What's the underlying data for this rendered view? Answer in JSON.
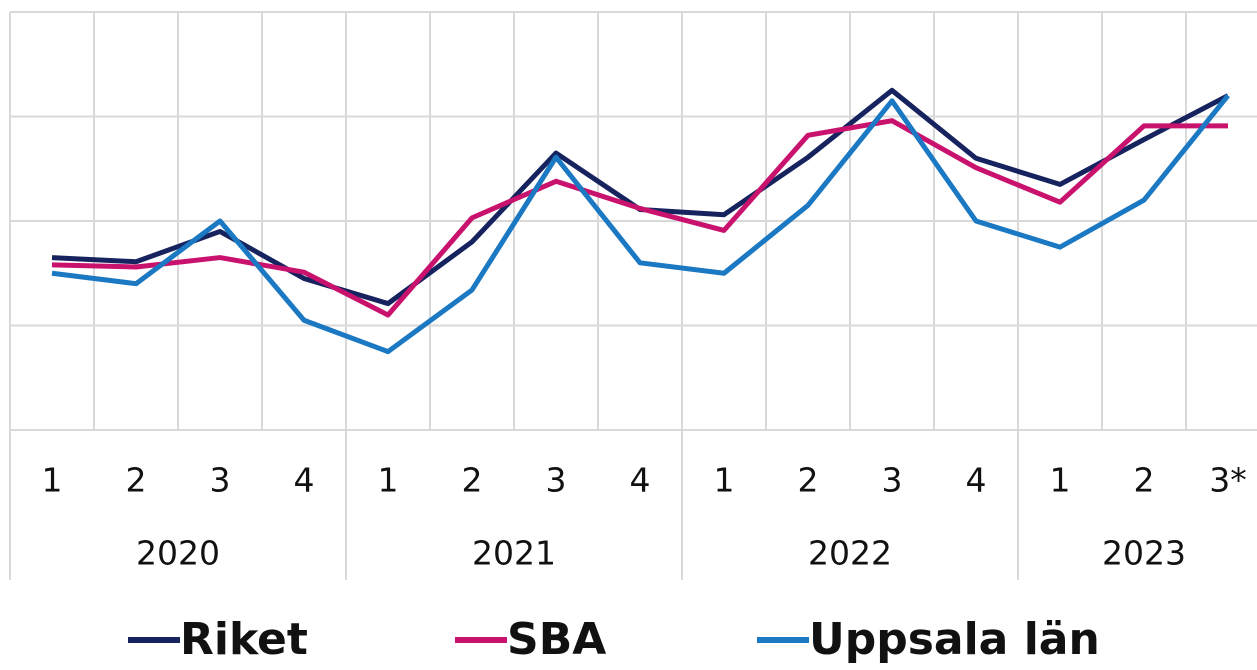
{
  "chart_data": {
    "type": "line",
    "categories": [
      "1",
      "2",
      "3",
      "4",
      "1",
      "2",
      "3",
      "4",
      "1",
      "2",
      "3",
      "4",
      "1",
      "2",
      "3*"
    ],
    "groups": [
      "2020",
      "2021",
      "2022",
      "2023"
    ],
    "series": [
      {
        "name": "Riket",
        "color": "#16235e",
        "values": [
          1.65,
          1.61,
          1.9,
          1.45,
          1.21,
          1.8,
          2.65,
          2.11,
          2.06,
          2.61,
          3.25,
          2.6,
          2.35,
          2.78,
          3.2
        ]
      },
      {
        "name": "SBA",
        "color": "#c8126e",
        "values": [
          1.58,
          1.56,
          1.65,
          1.51,
          1.1,
          2.03,
          2.38,
          2.12,
          1.91,
          2.82,
          2.96,
          2.51,
          2.18,
          2.91,
          2.91
        ]
      },
      {
        "name": "Uppsala län",
        "color": "#1b78c2",
        "values": [
          1.5,
          1.4,
          2.0,
          1.05,
          0.75,
          1.34,
          2.61,
          1.6,
          1.5,
          2.15,
          3.15,
          2.0,
          1.75,
          2.2,
          3.2
        ]
      }
    ],
    "ylim": [
      0,
      4
    ],
    "yticks": [
      0,
      1,
      2,
      3,
      4
    ],
    "grid": true,
    "legend": "bottom"
  }
}
